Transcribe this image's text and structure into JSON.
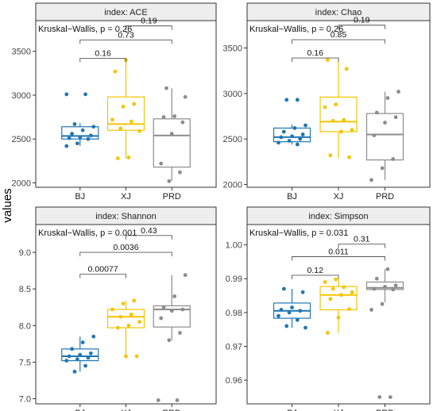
{
  "figure": {
    "ylabel": "values",
    "group_colors": {
      "BJ": "#1f77b4",
      "XJ": "#f5c400",
      "PRD": "#8c8c8c"
    },
    "strip_fill": "#eeeeee"
  },
  "chart_data": [
    {
      "type": "boxplot",
      "title": "index: ACE",
      "annotation": "Kruskal−Wallis, p = 0.26",
      "categories": [
        "BJ",
        "XJ",
        "PRD"
      ],
      "ylim": [
        1950,
        3850
      ],
      "yticks": [
        2000,
        2500,
        3000,
        3500
      ],
      "ytick_labels": [
        "2000",
        "2500",
        "3000",
        "3500"
      ],
      "boxes": [
        {
          "q1": 2500,
          "median": 2535,
          "q3": 2640,
          "whisker_low": 2420,
          "whisker_high": 2680
        },
        {
          "q1": 2600,
          "median": 2670,
          "q3": 2980,
          "whisker_low": 2280,
          "whisker_high": 3400
        },
        {
          "q1": 2180,
          "median": 2540,
          "q3": 2730,
          "whisker_low": 2020,
          "whisker_high": 3080
        }
      ],
      "points": [
        [
          2420,
          2450,
          2500,
          2510,
          2520,
          2540,
          2560,
          2600,
          2640,
          2670,
          3010,
          3010
        ],
        [
          2280,
          2290,
          2590,
          2620,
          2700,
          2720,
          2870,
          2900,
          3270,
          3400
        ],
        [
          2020,
          2120,
          2220,
          2560,
          2690,
          2750,
          2760,
          2980,
          3080
        ]
      ],
      "comparisons": [
        {
          "groups": [
            "BJ",
            "XJ"
          ],
          "label": "0.16",
          "y": 3420
        },
        {
          "groups": [
            "BJ",
            "PRD"
          ],
          "label": "0.73",
          "y": 3630
        },
        {
          "groups": [
            "XJ",
            "PRD"
          ],
          "label": "0.19",
          "y": 3790
        }
      ]
    },
    {
      "type": "boxplot",
      "title": "index: Chao",
      "annotation": "Kruskal−Wallis, p = 0.26",
      "categories": [
        "BJ",
        "XJ",
        "PRD"
      ],
      "ylim": [
        1970,
        3800
      ],
      "yticks": [
        2000,
        2500,
        3000,
        3500
      ],
      "ytick_labels": [
        "2000",
        "2500",
        "3000",
        "3500"
      ],
      "boxes": [
        {
          "q1": 2470,
          "median": 2520,
          "q3": 2620,
          "whisker_low": 2440,
          "whisker_high": 2660
        },
        {
          "q1": 2580,
          "median": 2690,
          "q3": 2960,
          "whisker_low": 2290,
          "whisker_high": 3370
        },
        {
          "q1": 2270,
          "median": 2550,
          "q3": 2780,
          "whisker_low": 2050,
          "whisker_high": 3020
        }
      ],
      "points": [
        [
          2440,
          2460,
          2480,
          2500,
          2520,
          2530,
          2550,
          2580,
          2620,
          2650,
          2930,
          2930
        ],
        [
          2300,
          2320,
          2580,
          2600,
          2700,
          2710,
          2850,
          2880,
          3270,
          3370
        ],
        [
          2050,
          2180,
          2280,
          2540,
          2680,
          2740,
          2790,
          2950,
          3020
        ]
      ],
      "comparisons": [
        {
          "groups": [
            "BJ",
            "XJ"
          ],
          "label": "0.16",
          "y": 3390
        },
        {
          "groups": [
            "BJ",
            "PRD"
          ],
          "label": "0.85",
          "y": 3590
        },
        {
          "groups": [
            "XJ",
            "PRD"
          ],
          "label": "0.19",
          "y": 3750
        }
      ]
    },
    {
      "type": "boxplot",
      "title": "index: Shannon",
      "annotation": "Kruskal−Wallis, p = 0.001",
      "categories": [
        "BJ",
        "XJ",
        "PRD"
      ],
      "ylim": [
        6.93,
        9.38
      ],
      "yticks": [
        7.0,
        7.5,
        8.0,
        8.5,
        9.0
      ],
      "ytick_labels": [
        "7.0",
        "7.5",
        "8.0",
        "8.5",
        "9.0"
      ],
      "boxes": [
        {
          "q1": 7.52,
          "median": 7.58,
          "q3": 7.68,
          "whisker_low": 7.37,
          "whisker_high": 7.85
        },
        {
          "q1": 7.97,
          "median": 8.12,
          "q3": 8.22,
          "whisker_low": 7.58,
          "whisker_high": 8.34
        },
        {
          "q1": 7.98,
          "median": 8.22,
          "q3": 8.27,
          "whisker_low": 7.8,
          "whisker_high": 8.69
        }
      ],
      "points": [
        [
          7.37,
          7.45,
          7.52,
          7.54,
          7.56,
          7.58,
          7.6,
          7.62,
          7.68,
          7.77,
          7.85
        ],
        [
          7.58,
          7.58,
          7.97,
          8.0,
          8.05,
          8.12,
          8.15,
          8.22,
          8.3,
          8.34
        ],
        [
          6.98,
          6.98,
          7.8,
          7.9,
          8.1,
          8.2,
          8.22,
          8.25,
          8.4,
          8.69
        ]
      ],
      "comparisons": [
        {
          "groups": [
            "BJ",
            "XJ"
          ],
          "label": "0.00077",
          "y": 8.7
        },
        {
          "groups": [
            "BJ",
            "PRD"
          ],
          "label": "0.0036",
          "y": 9.0
        },
        {
          "groups": [
            "XJ",
            "PRD"
          ],
          "label": "0.43",
          "y": 9.23
        }
      ]
    },
    {
      "type": "boxplot",
      "title": "index: Simpson",
      "annotation": "Kruskal−Wallis, p = 0.031",
      "categories": [
        "BJ",
        "XJ",
        "PRD"
      ],
      "ylim": [
        0.953,
        1.006
      ],
      "yticks": [
        0.96,
        0.97,
        0.98,
        0.99,
        1.0
      ],
      "ytick_labels": [
        "0.96",
        "0.97",
        "0.98",
        "0.99",
        "1.00"
      ],
      "boxes": [
        {
          "q1": 0.9783,
          "median": 0.9805,
          "q3": 0.9828,
          "whisker_low": 0.9755,
          "whisker_high": 0.987
        },
        {
          "q1": 0.9808,
          "median": 0.9852,
          "q3": 0.9877,
          "whisker_low": 0.974,
          "whisker_high": 0.9898
        },
        {
          "q1": 0.9868,
          "median": 0.9873,
          "q3": 0.989,
          "whisker_low": 0.983,
          "whisker_high": 0.9928
        }
      ],
      "points": [
        [
          0.9755,
          0.976,
          0.9778,
          0.979,
          0.98,
          0.9805,
          0.9808,
          0.9815,
          0.986,
          0.987
        ],
        [
          0.974,
          0.9785,
          0.981,
          0.984,
          0.9852,
          0.986,
          0.987,
          0.9875,
          0.989,
          0.9898
        ],
        [
          0.955,
          0.955,
          0.9808,
          0.9825,
          0.9868,
          0.987,
          0.9876,
          0.988,
          0.99,
          0.9928
        ]
      ],
      "comparisons": [
        {
          "groups": [
            "BJ",
            "XJ"
          ],
          "label": "0.12",
          "y": 0.991
        },
        {
          "groups": [
            "BJ",
            "PRD"
          ],
          "label": "0.011",
          "y": 0.9965
        },
        {
          "groups": [
            "XJ",
            "PRD"
          ],
          "label": "0.31",
          "y": 1.0002
        }
      ]
    }
  ]
}
